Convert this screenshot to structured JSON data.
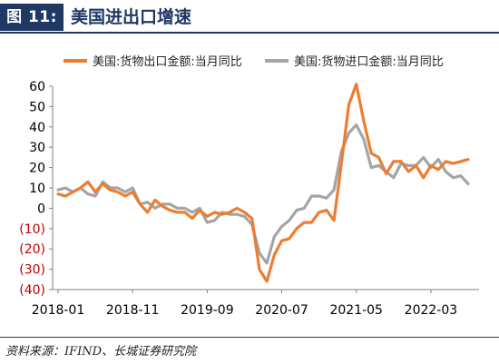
{
  "header": {
    "tag": "图 11:",
    "title": "美国进出口增速"
  },
  "source": "资料来源：IFIND、长城证券研究院",
  "chart_data": {
    "type": "line",
    "x": [
      "2018-01",
      "2018-02",
      "2018-03",
      "2018-04",
      "2018-05",
      "2018-06",
      "2018-07",
      "2018-08",
      "2018-09",
      "2018-10",
      "2018-11",
      "2018-12",
      "2019-01",
      "2019-02",
      "2019-03",
      "2019-04",
      "2019-05",
      "2019-06",
      "2019-07",
      "2019-08",
      "2019-09",
      "2019-10",
      "2019-11",
      "2019-12",
      "2020-01",
      "2020-02",
      "2020-03",
      "2020-04",
      "2020-05",
      "2020-06",
      "2020-07",
      "2020-08",
      "2020-09",
      "2020-10",
      "2020-11",
      "2020-12",
      "2021-01",
      "2021-02",
      "2021-03",
      "2021-04",
      "2021-05",
      "2021-06",
      "2021-07",
      "2021-08",
      "2021-09",
      "2021-10",
      "2021-11",
      "2021-12",
      "2022-01",
      "2022-02",
      "2022-03",
      "2022-04",
      "2022-05",
      "2022-06",
      "2022-07",
      "2022-08"
    ],
    "x_tick_labels": [
      "2018-01",
      "2018-11",
      "2019-09",
      "2020-07",
      "2021-05",
      "2022-03"
    ],
    "y_tick_labels": [
      "60",
      "50",
      "40",
      "30",
      "20",
      "10",
      "0",
      "(10)",
      "(20)",
      "(30)",
      "(40)"
    ],
    "ylim": [
      -40,
      60
    ],
    "y_ticks": [
      60,
      50,
      40,
      30,
      20,
      10,
      0,
      -10,
      -20,
      -30,
      -40
    ],
    "negative_tick_color": "#c00000",
    "grid": false,
    "legend_position": "top",
    "series": [
      {
        "name": "美国:货物出口金额:当月同比",
        "color": "#ed7d31",
        "values": [
          7,
          6,
          8,
          10,
          13,
          8,
          12,
          9,
          8,
          6,
          8,
          2,
          -2,
          4,
          1,
          -1,
          -2,
          -2,
          -5,
          -1,
          -4,
          -2,
          -3,
          -2,
          0,
          -2,
          -5,
          -30,
          -36,
          -23,
          -16,
          -15,
          -10,
          -7,
          -7,
          -2,
          -1,
          -6,
          22,
          51,
          61,
          43,
          27,
          25,
          17,
          23,
          23,
          18,
          21,
          15,
          21,
          19,
          23,
          22,
          23,
          24
        ]
      },
      {
        "name": "美国:货物进口金额:当月同比",
        "color": "#a5a5a5",
        "values": [
          9,
          10,
          8,
          10,
          7,
          6,
          13,
          10,
          10,
          8,
          10,
          2,
          3,
          0,
          2,
          2,
          0,
          0,
          -2,
          0,
          -7,
          -6,
          -2,
          -3,
          -3,
          -4,
          -8,
          -22,
          -27,
          -14,
          -9,
          -6,
          -1,
          0,
          6,
          6,
          5,
          9,
          28,
          37,
          41,
          34,
          20,
          21,
          18,
          15,
          22,
          21,
          21,
          25,
          20,
          24,
          18,
          15,
          16,
          12
        ]
      }
    ]
  }
}
